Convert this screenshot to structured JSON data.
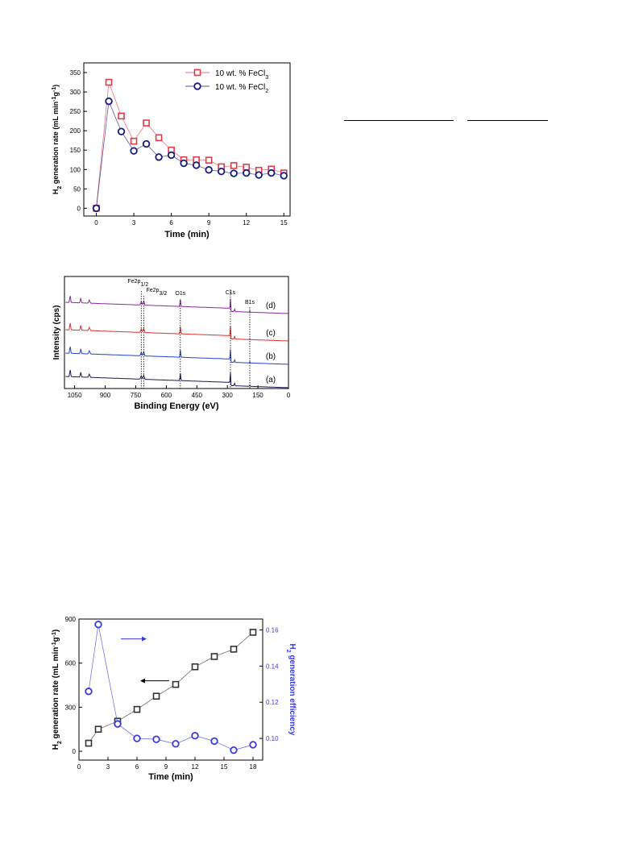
{
  "decorative_rules": [
    "rule-1",
    "rule-2"
  ],
  "chart_data": [
    {
      "type": "line",
      "xlabel": "Time (min)",
      "ylabel_parts": {
        "a": "H",
        "sub": "2",
        "b": " generation rate (mL min",
        "sup1": "-1",
        "c": "g",
        "sup2": "-1",
        "d": ")"
      },
      "xlim": [
        -1,
        15.5
      ],
      "ylim": [
        -20,
        375
      ],
      "xticks": [
        0,
        3,
        6,
        9,
        12,
        15
      ],
      "yticks": [
        0,
        50,
        100,
        150,
        200,
        250,
        300,
        350
      ],
      "legend_position": "top-right",
      "series": [
        {
          "name": "10 wt. % FeCl3",
          "legend_parts": {
            "a": "10 wt. % FeCl",
            "sub": "3"
          },
          "color": "#e23a4a",
          "marker": "square",
          "x": [
            0,
            1,
            2,
            3,
            4,
            5,
            6,
            7,
            8,
            9,
            10,
            11,
            12,
            13,
            14,
            15
          ],
          "y": [
            0,
            325,
            238,
            173,
            220,
            182,
            150,
            125,
            125,
            124,
            107,
            110,
            106,
            98,
            101,
            91
          ]
        },
        {
          "name": "10 wt. % FeCl2",
          "legend_parts": {
            "a": "10 wt. % FeCl",
            "sub": "2"
          },
          "color": "#1a1a80",
          "marker": "circle",
          "x": [
            0,
            1,
            2,
            3,
            4,
            5,
            6,
            7,
            8,
            9,
            10,
            11,
            12,
            13,
            14,
            15
          ],
          "y": [
            0,
            276,
            198,
            148,
            166,
            132,
            137,
            116,
            111,
            99,
            95,
            90,
            91,
            86,
            91,
            84
          ]
        }
      ]
    },
    {
      "type": "line",
      "xlabel": "Binding Energy (eV)",
      "ylabel": "Intensity (cps)",
      "xlim": [
        1100,
        0
      ],
      "xticks": [
        1050,
        900,
        750,
        600,
        450,
        300,
        150,
        0
      ],
      "annotations": [
        {
          "text": "Fe2p",
          "sub": "1/2",
          "x": 723
        },
        {
          "text": "Fe2p",
          "sub": "3/2",
          "x": 711
        },
        {
          "text": "O1s",
          "x": 531
        },
        {
          "text": "C1s",
          "x": 285
        },
        {
          "text": "B1s",
          "x": 190
        }
      ],
      "series": [
        {
          "name": "(a)",
          "color": "#1a1a50",
          "offset": 0
        },
        {
          "name": "(b)",
          "color": "#2244cc",
          "offset": 1
        },
        {
          "name": "(c)",
          "color": "#e03030",
          "offset": 2
        },
        {
          "name": "(d)",
          "color": "#8a2a9a",
          "offset": 3
        }
      ]
    },
    {
      "type": "line",
      "xlabel": "Time (min)",
      "ylabel_parts": {
        "a": "H",
        "sub": "2",
        "b": " generation rate (mL min",
        "sup1": "-1",
        "c": "g",
        "sup2": "-1",
        "d": ")"
      },
      "y2label_parts": {
        "a": "H",
        "sub": "2",
        "b": " generation efficiency"
      },
      "xlim": [
        0,
        19
      ],
      "ylim": [
        -60,
        900
      ],
      "y2lim": [
        0.088,
        0.166
      ],
      "xticks": [
        0,
        3,
        6,
        9,
        12,
        15,
        18
      ],
      "yticks": [
        0,
        300,
        600,
        900
      ],
      "y2ticks": [
        0.1,
        0.12,
        0.14,
        0.16
      ],
      "series": [
        {
          "name": "rate",
          "axis": "left",
          "color": "#333333",
          "marker": "square",
          "x": [
            1,
            2,
            4,
            6,
            8,
            10,
            12,
            14,
            16,
            18
          ],
          "y": [
            55,
            150,
            205,
            285,
            375,
            455,
            575,
            645,
            695,
            810
          ]
        },
        {
          "name": "efficiency",
          "axis": "right",
          "color": "#3a3ae0",
          "marker": "circle",
          "x": [
            1,
            2,
            4,
            6,
            8,
            10,
            12,
            14,
            16,
            18
          ],
          "y": [
            0.126,
            0.163,
            0.108,
            0.1,
            0.0995,
            0.097,
            0.1015,
            0.0985,
            0.0935,
            0.0965
          ]
        }
      ]
    }
  ]
}
